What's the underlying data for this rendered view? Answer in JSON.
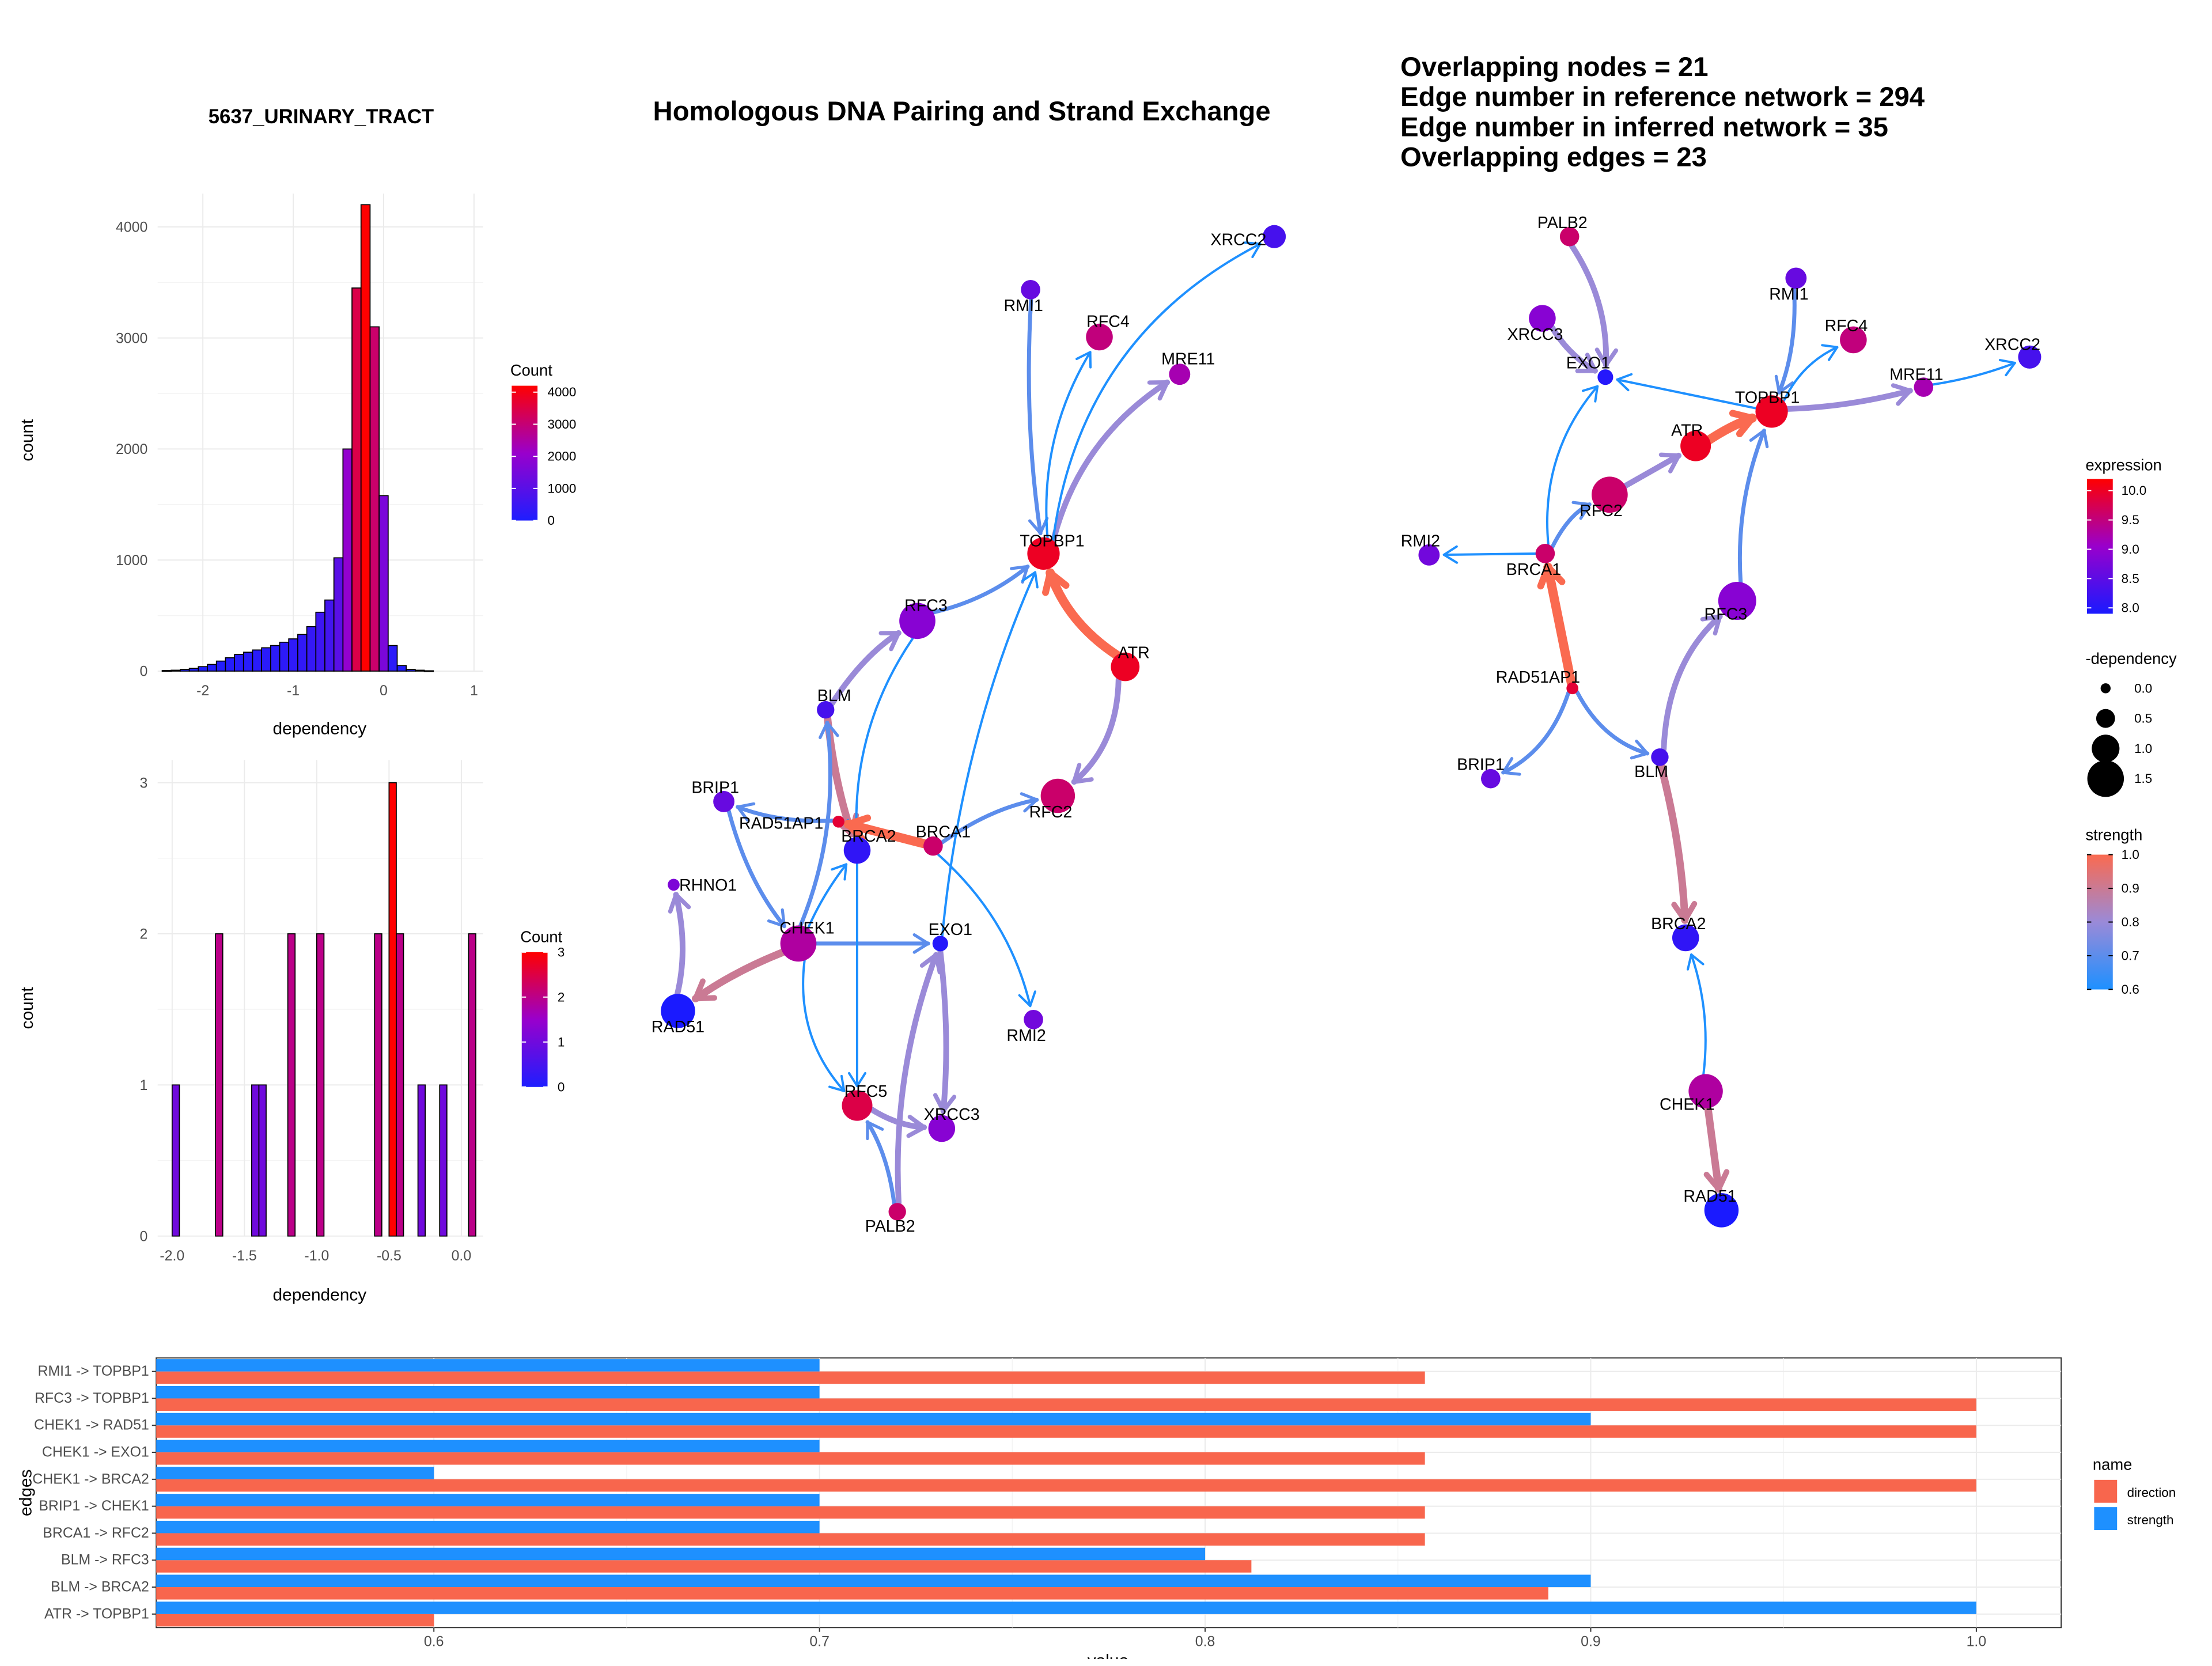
{
  "colors": {
    "expr_low": "#1a1aff",
    "expr_mid": "#9900cc",
    "expr_high": "#ff0000",
    "strength_low": "#1e90ff",
    "strength_mid": "#9a8ad8",
    "strength_high": "#fa6a50",
    "direction_bar": "#f8664d",
    "strength_bar": "#1e90ff",
    "hist_low": "#1e1eff",
    "hist_high": "#ff0000"
  },
  "titles": {
    "main": "Homologous DNA Pairing and Strand Exchange",
    "cell_line": "5637_URINARY_TRACT"
  },
  "stats": [
    "Overlapping nodes = 21",
    "Edge number in reference network = 294",
    "Edge number in inferred network = 35",
    "Overlapping edges = 23"
  ],
  "chart_data": [
    {
      "id": "hist_all",
      "type": "bar",
      "xlabel": "dependency",
      "ylabel": "count",
      "xlim": [
        -2.5,
        1.1
      ],
      "ylim": [
        0,
        4300
      ],
      "x_ticks": [
        "-2",
        "-1",
        "0",
        "1"
      ],
      "x_tick_values": [
        -2,
        -1,
        0,
        1
      ],
      "y_ticks": [
        "0",
        "1000",
        "2000",
        "3000",
        "4000"
      ],
      "y_tick_values": [
        0,
        1000,
        2000,
        3000,
        4000
      ],
      "bin_starts": [
        -2.45,
        -2.35,
        -2.25,
        -2.15,
        -2.05,
        -1.95,
        -1.85,
        -1.75,
        -1.65,
        -1.55,
        -1.45,
        -1.35,
        -1.25,
        -1.15,
        -1.05,
        -0.95,
        -0.85,
        -0.75,
        -0.65,
        -0.55,
        -0.45,
        -0.35,
        -0.25,
        -0.15,
        -0.05,
        0.05,
        0.15,
        0.25,
        0.35,
        0.45
      ],
      "bin_width": 0.1,
      "values": [
        5,
        8,
        15,
        25,
        40,
        60,
        90,
        120,
        150,
        170,
        190,
        210,
        230,
        260,
        290,
        330,
        400,
        530,
        640,
        1020,
        2000,
        3450,
        4200,
        3100,
        1580,
        230,
        50,
        15,
        8,
        3
      ],
      "legend": {
        "title": "Count",
        "ticks": [
          "0",
          "1000",
          "2000",
          "3000",
          "4000"
        ],
        "tick_values": [
          0,
          1000,
          2000,
          3000,
          4000
        ],
        "max": 4200
      }
    },
    {
      "id": "hist_genes",
      "type": "bar",
      "xlabel": "dependency",
      "ylabel": "count",
      "xlim": [
        -2.1,
        0.15
      ],
      "ylim": [
        0,
        3.15
      ],
      "x_ticks": [
        "-2.0",
        "-1.5",
        "-1.0",
        "-0.5",
        "0.0"
      ],
      "x_tick_values": [
        -2.0,
        -1.5,
        -1.0,
        -0.5,
        0.0
      ],
      "y_ticks": [
        "0",
        "1",
        "2",
        "3"
      ],
      "y_tick_values": [
        0,
        1,
        2,
        3
      ],
      "bin_starts": [
        -2.0,
        -1.7,
        -1.45,
        -1.4,
        -1.2,
        -1.0,
        -0.6,
        -0.5,
        -0.45,
        -0.3,
        -0.15,
        0.05
      ],
      "bin_width": 0.05,
      "values": [
        1,
        2,
        1,
        1,
        2,
        2,
        2,
        3,
        2,
        1,
        1,
        2
      ],
      "legend": {
        "title": "Count",
        "ticks": [
          "0",
          "1",
          "2",
          "3"
        ],
        "tick_values": [
          0,
          1,
          2,
          3
        ],
        "max": 3
      }
    },
    {
      "id": "edge_bars",
      "type": "bar",
      "orientation": "horizontal",
      "xlabel": "value",
      "ylabel": "edges",
      "xlim": [
        0.528,
        1.022
      ],
      "x_ticks": [
        "0.6",
        "0.7",
        "0.8",
        "0.9",
        "1.0"
      ],
      "x_tick_values": [
        0.6,
        0.7,
        0.8,
        0.9,
        1.0
      ],
      "categories": [
        "ATR -> TOPBP1",
        "BLM -> BRCA2",
        "BLM -> RFC3",
        "BRCA1 -> RFC2",
        "BRIP1 -> CHEK1",
        "CHEK1 -> BRCA2",
        "CHEK1 -> EXO1",
        "CHEK1 -> RAD51",
        "RFC3 -> TOPBP1",
        "RMI1 -> TOPBP1"
      ],
      "series": [
        {
          "name": "direction",
          "values": [
            0.6,
            0.889,
            0.812,
            0.857,
            0.857,
            1.0,
            0.857,
            1.0,
            1.0,
            0.857
          ]
        },
        {
          "name": "strength",
          "values": [
            1.0,
            0.9,
            0.8,
            0.7,
            0.7,
            0.6,
            0.7,
            0.9,
            0.7,
            0.7
          ]
        }
      ],
      "legend_title": "name"
    }
  ],
  "legends": {
    "expression": {
      "title": "expression",
      "ticks": [
        "10.0",
        "9.5",
        "9.0",
        "8.5",
        "8.0"
      ]
    },
    "dependency": {
      "title": "-dependency",
      "ticks": [
        "0.0",
        "0.5",
        "1.0",
        "1.5"
      ]
    },
    "strength": {
      "title": "strength",
      "ticks": [
        "1.0",
        "0.9",
        "0.8",
        "0.7",
        "0.6"
      ]
    }
  },
  "net1": {
    "nodes": [
      {
        "label": "XRCC2",
        "expr": 8.3,
        "size": 0.7
      },
      {
        "label": "RMI1",
        "expr": 8.6,
        "size": 0.5
      },
      {
        "label": "RFC4",
        "expr": 9.5,
        "size": 0.9
      },
      {
        "label": "MRE11",
        "expr": 9.2,
        "size": 0.6
      },
      {
        "label": "TOPBP1",
        "expr": 10.0,
        "size": 1.2
      },
      {
        "label": "RFC3",
        "expr": 8.9,
        "size": 1.4
      },
      {
        "label": "ATR",
        "expr": 10.0,
        "size": 1.0
      },
      {
        "label": "BLM",
        "expr": 8.3,
        "size": 0.4
      },
      {
        "label": "BRIP1",
        "expr": 8.6,
        "size": 0.6
      },
      {
        "label": "RAD51AP1",
        "expr": 9.9,
        "size": 0.1
      },
      {
        "label": "BRCA2",
        "expr": 8.1,
        "size": 0.9
      },
      {
        "label": "BRCA1",
        "expr": 9.6,
        "size": 0.5
      },
      {
        "label": "RFC2",
        "expr": 9.6,
        "size": 1.3
      },
      {
        "label": "RHNO1",
        "expr": 8.8,
        "size": 0.1
      },
      {
        "label": "CHEK1",
        "expr": 9.3,
        "size": 1.4
      },
      {
        "label": "EXO1",
        "expr": 8.0,
        "size": 0.3
      },
      {
        "label": "RAD51",
        "expr": 7.9,
        "size": 1.3
      },
      {
        "label": "RMI2",
        "expr": 8.7,
        "size": 0.5
      },
      {
        "label": "RFC5",
        "expr": 9.8,
        "size": 1.1
      },
      {
        "label": "XRCC3",
        "expr": 8.9,
        "size": 0.9
      },
      {
        "label": "PALB2",
        "expr": 9.6,
        "size": 0.4
      }
    ],
    "edges": [
      {
        "from": "ATR",
        "to": "TOPBP1",
        "strength": 1.0
      },
      {
        "from": "RMI1",
        "to": "TOPBP1",
        "strength": 0.7
      },
      {
        "from": "RFC3",
        "to": "TOPBP1",
        "strength": 0.7
      },
      {
        "from": "TOPBP1",
        "to": "RFC4",
        "strength": 0.6
      },
      {
        "from": "TOPBP1",
        "to": "MRE11",
        "strength": 0.8
      },
      {
        "from": "TOPBP1",
        "to": "XRCC2",
        "strength": 0.6
      },
      {
        "from": "ATR",
        "to": "RFC2",
        "strength": 0.8
      },
      {
        "from": "BLM",
        "to": "RFC3",
        "strength": 0.8
      },
      {
        "from": "BLM",
        "to": "BRCA2",
        "strength": 0.9
      },
      {
        "from": "RFC3",
        "to": "BRCA2",
        "strength": 0.6
      },
      {
        "from": "BRCA1",
        "to": "RAD51AP1",
        "strength": 1.0
      },
      {
        "from": "RAD51AP1",
        "to": "BRIP1",
        "strength": 0.7
      },
      {
        "from": "BRCA1",
        "to": "RFC2",
        "strength": 0.7
      },
      {
        "from": "BRIP1",
        "to": "CHEK1",
        "strength": 0.7
      },
      {
        "from": "CHEK1",
        "to": "BLM",
        "strength": 0.7
      },
      {
        "from": "CHEK1",
        "to": "RAD51",
        "strength": 0.9
      },
      {
        "from": "RAD51",
        "to": "RHNO1",
        "strength": 0.8
      },
      {
        "from": "CHEK1",
        "to": "EXO1",
        "strength": 0.7
      },
      {
        "from": "CHEK1",
        "to": "BRCA2",
        "strength": 0.6
      },
      {
        "from": "CHEK1",
        "to": "RFC5",
        "strength": 0.6
      },
      {
        "from": "BRCA2",
        "to": "RFC5",
        "strength": 0.6
      },
      {
        "from": "EXO1",
        "to": "TOPBP1",
        "strength": 0.6
      },
      {
        "from": "BRCA1",
        "to": "RMI2",
        "strength": 0.6
      },
      {
        "from": "EXO1",
        "to": "XRCC3",
        "strength": 0.8
      },
      {
        "from": "PALB2",
        "to": "EXO1",
        "strength": 0.8
      },
      {
        "from": "PALB2",
        "to": "RFC5",
        "strength": 0.7
      },
      {
        "from": "RFC5",
        "to": "XRCC3",
        "strength": 0.8
      }
    ]
  },
  "net2": {
    "nodes": [
      {
        "label": "PALB2",
        "expr": 9.6,
        "size": 0.5
      },
      {
        "label": "XRCC3",
        "expr": 8.9,
        "size": 0.9
      },
      {
        "label": "EXO1",
        "expr": 8.0,
        "size": 0.3
      },
      {
        "label": "RMI1",
        "expr": 8.6,
        "size": 0.6
      },
      {
        "label": "RFC4",
        "expr": 9.5,
        "size": 0.9
      },
      {
        "label": "TOPBP1",
        "expr": 10.0,
        "size": 1.2
      },
      {
        "label": "MRE11",
        "expr": 9.2,
        "size": 0.5
      },
      {
        "label": "XRCC2",
        "expr": 8.3,
        "size": 0.7
      },
      {
        "label": "ATR",
        "expr": 10.0,
        "size": 1.1
      },
      {
        "label": "RFC2",
        "expr": 9.6,
        "size": 1.4
      },
      {
        "label": "RMI2",
        "expr": 8.7,
        "size": 0.6
      },
      {
        "label": "BRCA1",
        "expr": 9.6,
        "size": 0.5
      },
      {
        "label": "RFC3",
        "expr": 8.9,
        "size": 1.5
      },
      {
        "label": "RAD51AP1",
        "expr": 9.9,
        "size": 0.1
      },
      {
        "label": "BRIP1",
        "expr": 8.6,
        "size": 0.5
      },
      {
        "label": "BLM",
        "expr": 8.3,
        "size": 0.4
      },
      {
        "label": "BRCA2",
        "expr": 8.1,
        "size": 0.9
      },
      {
        "label": "CHEK1",
        "expr": 9.3,
        "size": 1.3
      },
      {
        "label": "RAD51",
        "expr": 7.9,
        "size": 1.3
      }
    ],
    "edges": [
      {
        "from": "PALB2",
        "to": "EXO1",
        "strength": 0.8
      },
      {
        "from": "XRCC3",
        "to": "EXO1",
        "strength": 0.8
      },
      {
        "from": "TOPBP1",
        "to": "EXO1",
        "strength": 0.6
      },
      {
        "from": "RMI1",
        "to": "TOPBP1",
        "strength": 0.7
      },
      {
        "from": "TOPBP1",
        "to": "RFC4",
        "strength": 0.6
      },
      {
        "from": "TOPBP1",
        "to": "MRE11",
        "strength": 0.8
      },
      {
        "from": "MRE11",
        "to": "XRCC2",
        "strength": 0.6
      },
      {
        "from": "ATR",
        "to": "TOPBP1",
        "strength": 1.0
      },
      {
        "from": "RFC2",
        "to": "ATR",
        "strength": 0.8
      },
      {
        "from": "BRCA1",
        "to": "EXO1",
        "strength": 0.6
      },
      {
        "from": "BRCA1",
        "to": "RFC2",
        "strength": 0.7
      },
      {
        "from": "BRCA1",
        "to": "RMI2",
        "strength": 0.6
      },
      {
        "from": "RAD51AP1",
        "to": "BRCA1",
        "strength": 1.0
      },
      {
        "from": "RFC3",
        "to": "TOPBP1",
        "strength": 0.7
      },
      {
        "from": "RAD51AP1",
        "to": "BRIP1",
        "strength": 0.7
      },
      {
        "from": "RAD51AP1",
        "to": "BLM",
        "strength": 0.7
      },
      {
        "from": "BLM",
        "to": "RFC3",
        "strength": 0.8
      },
      {
        "from": "BLM",
        "to": "BRCA2",
        "strength": 0.9
      },
      {
        "from": "CHEK1",
        "to": "BRCA2",
        "strength": 0.6
      },
      {
        "from": "CHEK1",
        "to": "RAD51",
        "strength": 0.9
      }
    ]
  }
}
